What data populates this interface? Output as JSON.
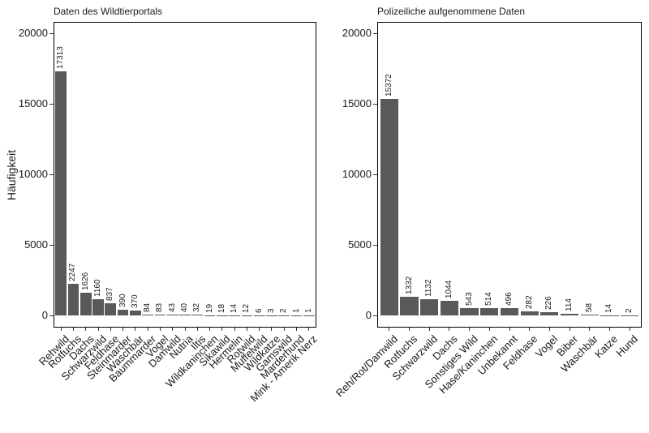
{
  "figure": {
    "y_axis_label": "Häufigkeit",
    "bar_color": "#595959",
    "axis_color": "#333333",
    "text_color": "#1a1a1a",
    "background": "#ffffff"
  },
  "chart_data": [
    {
      "type": "bar",
      "title": "Daten des Wildtierportals",
      "xlabel": "",
      "ylabel": "Häufigkeit",
      "ylim": [
        0,
        20000
      ],
      "yticks": [
        0,
        5000,
        10000,
        15000,
        20000
      ],
      "grid": false,
      "legend_position": "none",
      "categories": [
        "Rehwild",
        "Rotfuchs",
        "Dachs",
        "Schwarzwild",
        "Feldhase",
        "Steinmarder",
        "Waschbär",
        "Baummarder",
        "Vogel",
        "Damwild",
        "Nutria",
        "Iltis",
        "Wildkaninchen",
        "Sikawild",
        "Hermelin",
        "Rotwild",
        "Muffelwild",
        "Wildkatze",
        "Gamswild",
        "Marderhund",
        "Mink - Amerik Nerz"
      ],
      "values": [
        17313,
        2247,
        1626,
        1160,
        837,
        390,
        370,
        84,
        83,
        43,
        40,
        32,
        19,
        18,
        14,
        12,
        6,
        3,
        2,
        1,
        1
      ]
    },
    {
      "type": "bar",
      "title": "Polizeiliche aufgenommene Daten",
      "xlabel": "",
      "ylabel": "",
      "ylim": [
        0,
        20000
      ],
      "yticks": [
        0,
        5000,
        10000,
        15000,
        20000
      ],
      "grid": false,
      "legend_position": "none",
      "categories": [
        "Reh/Rot/Damwild",
        "Rotfuchs",
        "Schwarzwild",
        "Dachs",
        "Sonstiges Wild",
        "Hase/Kaninchen",
        "Unbekannt",
        "Feldhase",
        "Vogel",
        "Biber",
        "Waschbär",
        "Katze",
        "Hund"
      ],
      "values": [
        15372,
        1332,
        1132,
        1044,
        543,
        514,
        496,
        282,
        226,
        114,
        58,
        14,
        2
      ]
    }
  ]
}
